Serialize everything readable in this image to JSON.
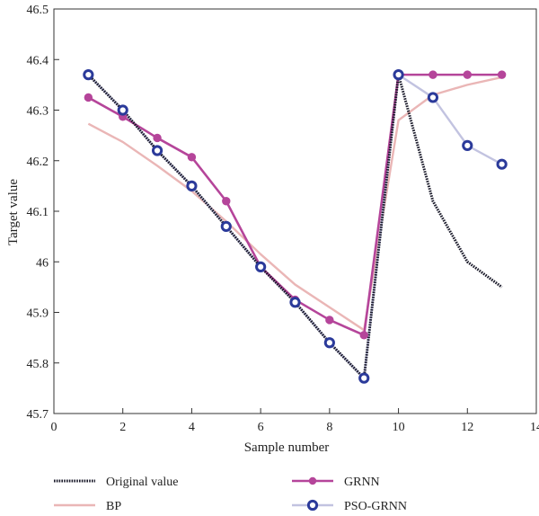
{
  "chart_data": {
    "type": "line",
    "xlabel": "Sample number",
    "ylabel": "Target value",
    "xlim": [
      0,
      14
    ],
    "ylim": [
      45.7,
      46.5
    ],
    "xticks": [
      0,
      2,
      4,
      6,
      8,
      10,
      12,
      14
    ],
    "xtick_labels": [
      "0",
      "2",
      "4",
      "6",
      "8",
      "10",
      "12",
      "14"
    ],
    "yticks": [
      45.7,
      45.8,
      45.9,
      46.0,
      46.1,
      46.2,
      46.3,
      46.4,
      46.5
    ],
    "ytick_labels": [
      "45.7",
      "45.8",
      "45.9",
      "46",
      "46.1",
      "46.2",
      "46.3",
      "46.4",
      "46.5"
    ],
    "grid": false,
    "legend_position": "bottom",
    "x": [
      1,
      2,
      3,
      4,
      5,
      6,
      7,
      8,
      9,
      10,
      11,
      12,
      13
    ],
    "series": [
      {
        "name": "Original value",
        "color": "#1a1a2a",
        "style": "dotted",
        "marker": "none",
        "values": [
          46.37,
          46.3,
          46.22,
          46.15,
          46.07,
          45.99,
          45.92,
          45.84,
          45.77,
          46.37,
          46.12,
          46.0,
          45.95
        ]
      },
      {
        "name": "BP",
        "color": "#eab6b6",
        "style": "solid",
        "marker": "none",
        "values": [
          46.273,
          46.237,
          46.19,
          46.14,
          46.08,
          46.015,
          45.955,
          45.91,
          45.865,
          46.28,
          46.33,
          46.35,
          46.365
        ]
      },
      {
        "name": "GRNN",
        "color": "#b5459a",
        "style": "solid",
        "marker": "filled-circle",
        "values": [
          46.325,
          46.287,
          46.245,
          46.207,
          46.12,
          45.99,
          45.925,
          45.885,
          45.855,
          46.37,
          46.37,
          46.37,
          46.37
        ]
      },
      {
        "name": "PSO-GRNN",
        "color": "#c2c3e0",
        "marker_color": "#2b3a9a",
        "style": "solid",
        "marker": "open-circle",
        "values": [
          46.37,
          46.3,
          46.22,
          46.15,
          46.07,
          45.99,
          45.92,
          45.84,
          45.77,
          46.37,
          46.325,
          46.23,
          46.193
        ]
      }
    ]
  }
}
